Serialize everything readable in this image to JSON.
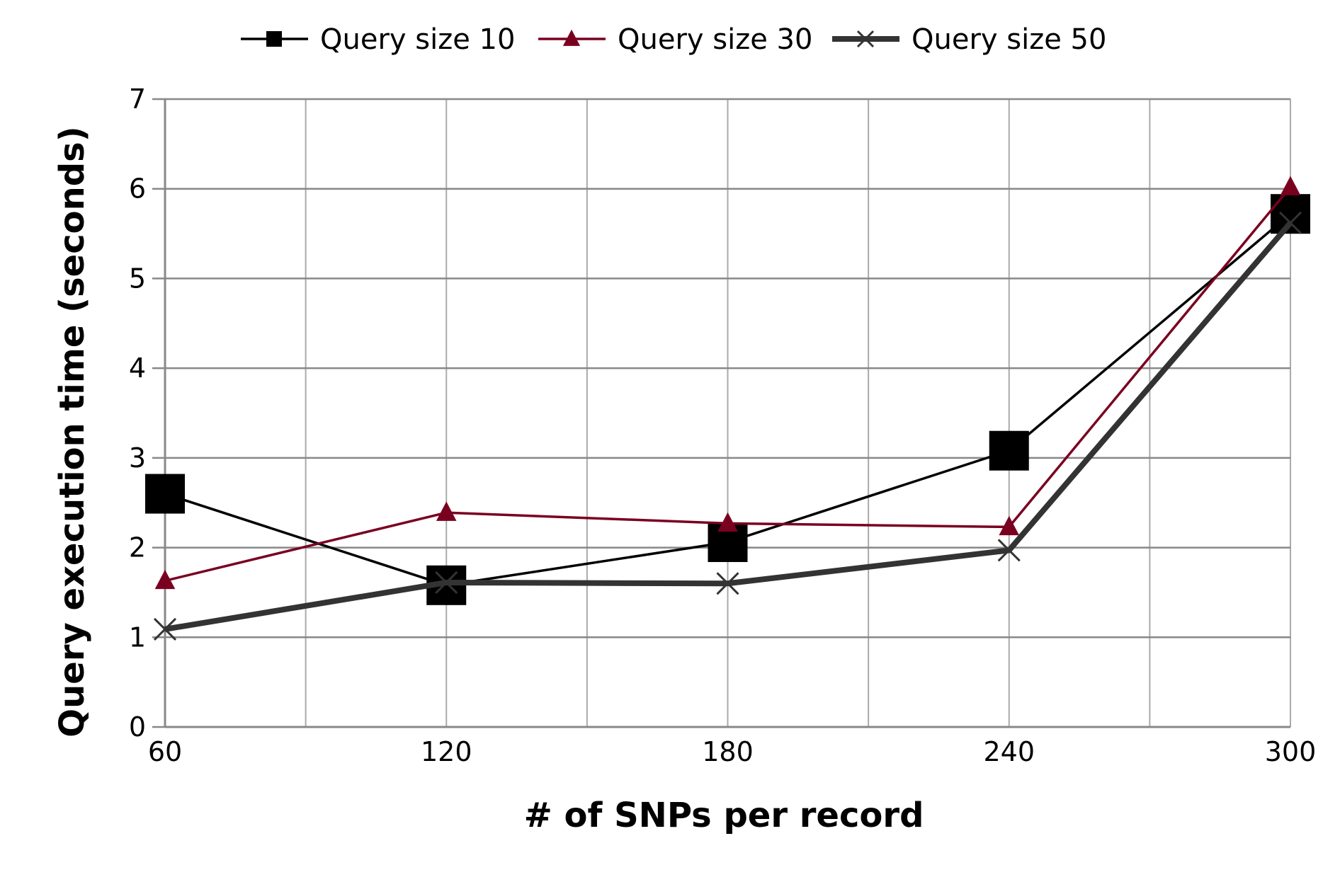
{
  "chart_data": {
    "type": "line",
    "title": "",
    "xlabel": "# of SNPs per record",
    "ylabel": "Query execution time (seconds)",
    "x": [
      60,
      120,
      180,
      240,
      300
    ],
    "x_tick_labels": [
      "60",
      "120",
      "180",
      "240",
      "300"
    ],
    "ylim": [
      0,
      7
    ],
    "y_ticks": [
      0,
      1,
      2,
      3,
      4,
      5,
      6,
      7
    ],
    "grid": true,
    "legend_position": "top",
    "series": [
      {
        "name": "Query size 10",
        "values": [
          2.6,
          1.58,
          2.06,
          3.08,
          5.72
        ],
        "color": "#000000",
        "marker": "square"
      },
      {
        "name": "Query size 30",
        "values": [
          1.63,
          2.39,
          2.27,
          2.23,
          6.02
        ],
        "color": "#7a0020",
        "marker": "triangle"
      },
      {
        "name": "Query size 50",
        "values": [
          1.09,
          1.61,
          1.6,
          1.97,
          5.62
        ],
        "color": "#333333",
        "marker": "x"
      }
    ]
  }
}
